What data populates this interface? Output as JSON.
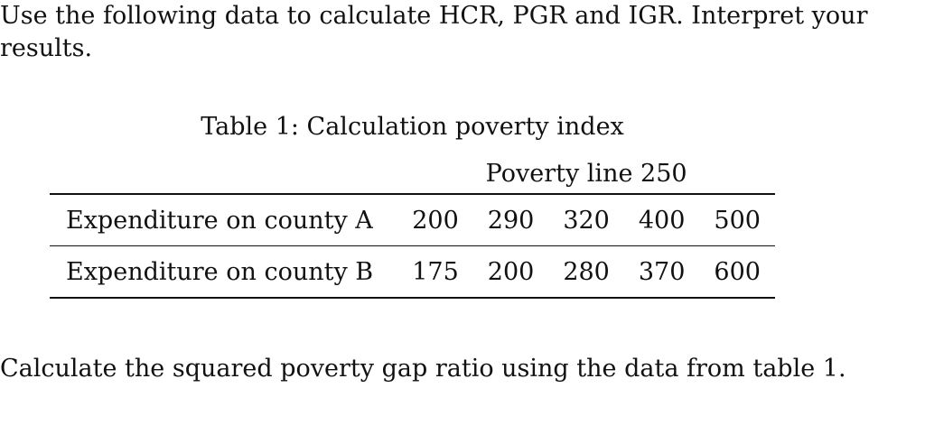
{
  "intro_text": "Use the following data to calculate HCR, PGR and IGR. Interpret your results.",
  "table": {
    "caption": "Table 1: Calculation poverty index",
    "group_header": "Poverty line 250",
    "rows": [
      {
        "label": "Expenditure on county A",
        "values": [
          "200",
          "290",
          "320",
          "400",
          "500"
        ]
      },
      {
        "label": "Expenditure on county B",
        "values": [
          "175",
          "200",
          "280",
          "370",
          "600"
        ]
      }
    ]
  },
  "question_text": "Calculate the squared poverty gap ratio using the data from table 1."
}
